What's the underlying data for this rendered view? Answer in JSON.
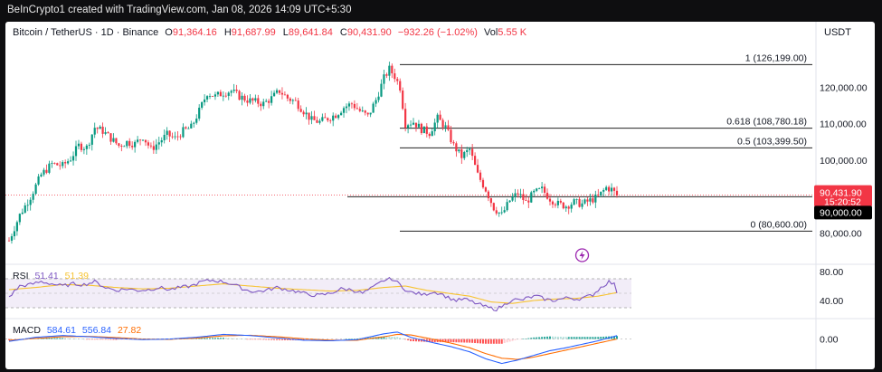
{
  "credit": "BeInCrypto1 created with TradingView.com, Jan 08, 2026 14:09 UTC+5:30",
  "header": {
    "symbol": "Bitcoin / TetherUS · 1D · Binance",
    "ohlc": [
      {
        "k": "O",
        "v": "91,364.16"
      },
      {
        "k": "H",
        "v": "91,687.99"
      },
      {
        "k": "L",
        "v": "89,641.84"
      },
      {
        "k": "C",
        "v": "90,431.90"
      }
    ],
    "change": "−932.26 (−1.02%)",
    "vol_label": "Vol",
    "vol_value": "5.55 K"
  },
  "currency": "USDT",
  "colors": {
    "up": "#089981",
    "down": "#f23645",
    "fib": "#222222",
    "rsi": "#7e57c2",
    "rsi_ma": "#f7c331",
    "macd": "#2962ff",
    "signal": "#ff6d00",
    "price_tag": "#f23645",
    "level_tag": "#000000"
  },
  "chart_data": [
    {
      "type": "candlestick",
      "title": "Bitcoin / TetherUS · 1D · Binance",
      "ylim": [
        72000,
        132000
      ],
      "yticks": [
        {
          "v": 120000,
          "label": "120,000.00"
        },
        {
          "v": 110000,
          "label": "110,000.00"
        },
        {
          "v": 100000,
          "label": "100,000.00"
        },
        {
          "v": 80000,
          "label": "80,000.00"
        }
      ],
      "fib_levels": [
        {
          "value": 126199,
          "label": "1 (126,199.00)"
        },
        {
          "value": 108780.18,
          "label": "0.618 (108,780.18)"
        },
        {
          "value": 103399.5,
          "label": "0.5 (103,399.50)"
        },
        {
          "value": 80600,
          "label": "0 (80,600.00)"
        }
      ],
      "support_level": {
        "value": 90000,
        "label": "90,000.00"
      },
      "last_price": {
        "value": 90431.9,
        "label": "90,431.90",
        "countdown": "15:20:52"
      },
      "price_path": [
        [
          0,
          78000
        ],
        [
          4,
          85000
        ],
        [
          8,
          90000
        ],
        [
          12,
          96000
        ],
        [
          16,
          99000
        ],
        [
          20,
          98500
        ],
        [
          23,
          100500
        ],
        [
          26,
          104000
        ],
        [
          29,
          103500
        ],
        [
          32,
          109000
        ],
        [
          35,
          108000
        ],
        [
          38,
          106000
        ],
        [
          41,
          104000
        ],
        [
          44,
          105000
        ],
        [
          47,
          104500
        ],
        [
          50,
          106500
        ],
        [
          53,
          103000
        ],
        [
          56,
          105000
        ],
        [
          59,
          107000
        ],
        [
          62,
          106000
        ],
        [
          65,
          108000
        ],
        [
          68,
          109000
        ],
        [
          71,
          113500
        ],
        [
          74,
          118500
        ],
        [
          77,
          117500
        ],
        [
          80,
          118500
        ],
        [
          83,
          119000
        ],
        [
          86,
          117500
        ],
        [
          89,
          116500
        ],
        [
          92,
          116000
        ],
        [
          95,
          115500
        ],
        [
          98,
          117000
        ],
        [
          101,
          119000
        ],
        [
          104,
          117000
        ],
        [
          107,
          116000
        ],
        [
          110,
          113500
        ],
        [
          113,
          111000
        ],
        [
          116,
          110500
        ],
        [
          119,
          111500
        ],
        [
          122,
          112500
        ],
        [
          125,
          114500
        ],
        [
          128,
          115500
        ],
        [
          131,
          113500
        ],
        [
          134,
          112000
        ],
        [
          137,
          116500
        ],
        [
          140,
          122500
        ],
        [
          142,
          125000
        ],
        [
          144,
          123000
        ],
        [
          146,
          120000
        ],
        [
          148,
          110000
        ],
        [
          151,
          110500
        ],
        [
          154,
          108500
        ],
        [
          157,
          107500
        ],
        [
          160,
          111500
        ],
        [
          163,
          109000
        ],
        [
          166,
          104000
        ],
        [
          169,
          101000
        ],
        [
          172,
          103000
        ],
        [
          175,
          96000
        ],
        [
          178,
          92000
        ],
        [
          181,
          87000
        ],
        [
          184,
          85000
        ],
        [
          187,
          89000
        ],
        [
          190,
          91000
        ],
        [
          193,
          88500
        ],
        [
          196,
          91000
        ],
        [
          199,
          92000
        ],
        [
          202,
          89500
        ],
        [
          205,
          88000
        ],
        [
          208,
          87500
        ],
        [
          211,
          88500
        ],
        [
          214,
          88000
        ],
        [
          217,
          89000
        ],
        [
          220,
          90000
        ],
        [
          223,
          92500
        ],
        [
          225,
          92000
        ],
        [
          227,
          90400
        ]
      ],
      "event_icon": "lightning-icon"
    },
    {
      "type": "line",
      "title": "RSI",
      "ylim": [
        25,
        85
      ],
      "yticks": [
        {
          "v": 80,
          "label": "80.00"
        },
        {
          "v": 40,
          "label": "40.00"
        }
      ],
      "band": [
        70,
        30
      ],
      "legend": [
        {
          "name": "RSI",
          "value": "51.41",
          "color": "#7e57c2"
        },
        {
          "name": "",
          "value": "51.39",
          "color": "#f7c331"
        }
      ],
      "series": [
        {
          "name": "RSI",
          "color": "#7e57c2",
          "values": [
            [
              0,
              45
            ],
            [
              4,
              60
            ],
            [
              8,
              62
            ],
            [
              12,
              66
            ],
            [
              16,
              63
            ],
            [
              20,
              60
            ],
            [
              24,
              63
            ],
            [
              28,
              62
            ],
            [
              32,
              66
            ],
            [
              36,
              58
            ],
            [
              40,
              54
            ],
            [
              44,
              56
            ],
            [
              48,
              54
            ],
            [
              52,
              55
            ],
            [
              56,
              58
            ],
            [
              60,
              55
            ],
            [
              64,
              58
            ],
            [
              68,
              60
            ],
            [
              72,
              66
            ],
            [
              76,
              68
            ],
            [
              80,
              66
            ],
            [
              84,
              62
            ],
            [
              88,
              55
            ],
            [
              92,
              52
            ],
            [
              96,
              54
            ],
            [
              100,
              58
            ],
            [
              104,
              55
            ],
            [
              108,
              52
            ],
            [
              112,
              48
            ],
            [
              116,
              47
            ],
            [
              120,
              50
            ],
            [
              124,
              56
            ],
            [
              128,
              55
            ],
            [
              132,
              50
            ],
            [
              136,
              58
            ],
            [
              140,
              68
            ],
            [
              143,
              70
            ],
            [
              146,
              62
            ],
            [
              149,
              52
            ],
            [
              152,
              50
            ],
            [
              155,
              48
            ],
            [
              158,
              52
            ],
            [
              161,
              50
            ],
            [
              164,
              44
            ],
            [
              167,
              40
            ],
            [
              170,
              42
            ],
            [
              173,
              38
            ],
            [
              176,
              34
            ],
            [
              179,
              30
            ],
            [
              182,
              28
            ],
            [
              185,
              34
            ],
            [
              188,
              42
            ],
            [
              191,
              40
            ],
            [
              194,
              44
            ],
            [
              197,
              46
            ],
            [
              200,
              42
            ],
            [
              203,
              40
            ],
            [
              206,
              42
            ],
            [
              209,
              44
            ],
            [
              212,
              42
            ],
            [
              215,
              44
            ],
            [
              218,
              48
            ],
            [
              221,
              58
            ],
            [
              224,
              66
            ],
            [
              226,
              62
            ],
            [
              227,
              52
            ]
          ]
        },
        {
          "name": "",
          "color": "#f7c331",
          "values": [
            [
              0,
              55
            ],
            [
              10,
              58
            ],
            [
              20,
              62
            ],
            [
              30,
              61
            ],
            [
              40,
              58
            ],
            [
              50,
              56
            ],
            [
              60,
              57
            ],
            [
              70,
              60
            ],
            [
              80,
              63
            ],
            [
              90,
              60
            ],
            [
              100,
              57
            ],
            [
              110,
              55
            ],
            [
              120,
              53
            ],
            [
              130,
              54
            ],
            [
              140,
              58
            ],
            [
              148,
              60
            ],
            [
              156,
              54
            ],
            [
              164,
              50
            ],
            [
              172,
              46
            ],
            [
              180,
              38
            ],
            [
              188,
              36
            ],
            [
              196,
              40
            ],
            [
              204,
              42
            ],
            [
              212,
              43
            ],
            [
              220,
              46
            ],
            [
              227,
              51
            ]
          ]
        }
      ]
    },
    {
      "type": "bar+line",
      "title": "MACD",
      "ylim": [
        -5200,
        3200
      ],
      "yticks": [
        {
          "v": 0,
          "label": "0.00"
        }
      ],
      "legend": [
        {
          "name": "MACD",
          "value": "584.61",
          "color": "#2962ff"
        },
        {
          "name": "",
          "value": "556.84",
          "color": "#2962ff"
        },
        {
          "name": "",
          "value": "27.82",
          "color": "#ff6d00"
        }
      ],
      "series": [
        {
          "name": "MACD",
          "color": "#2962ff",
          "values": [
            [
              0,
              -400
            ],
            [
              10,
              300
            ],
            [
              20,
              600
            ],
            [
              30,
              400
            ],
            [
              40,
              100
            ],
            [
              50,
              -100
            ],
            [
              60,
              0
            ],
            [
              70,
              300
            ],
            [
              80,
              800
            ],
            [
              90,
              600
            ],
            [
              100,
              200
            ],
            [
              110,
              -200
            ],
            [
              120,
              -300
            ],
            [
              130,
              -100
            ],
            [
              140,
              900
            ],
            [
              145,
              1200
            ],
            [
              150,
              300
            ],
            [
              158,
              -600
            ],
            [
              165,
              -1300
            ],
            [
              172,
              -2200
            ],
            [
              178,
              -3400
            ],
            [
              184,
              -4200
            ],
            [
              190,
              -3600
            ],
            [
              196,
              -2800
            ],
            [
              202,
              -2000
            ],
            [
              208,
              -1500
            ],
            [
              214,
              -900
            ],
            [
              220,
              -300
            ],
            [
              227,
              580
            ]
          ]
        },
        {
          "name": "",
          "color": "#ff6d00",
          "values": [
            [
              0,
              -200
            ],
            [
              10,
              100
            ],
            [
              20,
              400
            ],
            [
              30,
              450
            ],
            [
              40,
              250
            ],
            [
              50,
              0
            ],
            [
              60,
              -50
            ],
            [
              70,
              150
            ],
            [
              80,
              550
            ],
            [
              90,
              650
            ],
            [
              100,
              400
            ],
            [
              110,
              50
            ],
            [
              120,
              -200
            ],
            [
              130,
              -200
            ],
            [
              140,
              400
            ],
            [
              145,
              800
            ],
            [
              150,
              700
            ],
            [
              158,
              0
            ],
            [
              165,
              -700
            ],
            [
              172,
              -1500
            ],
            [
              178,
              -2500
            ],
            [
              184,
              -3300
            ],
            [
              190,
              -3500
            ],
            [
              196,
              -3100
            ],
            [
              202,
              -2500
            ],
            [
              208,
              -1900
            ],
            [
              214,
              -1300
            ],
            [
              220,
              -700
            ],
            [
              227,
              0
            ]
          ]
        }
      ]
    }
  ]
}
